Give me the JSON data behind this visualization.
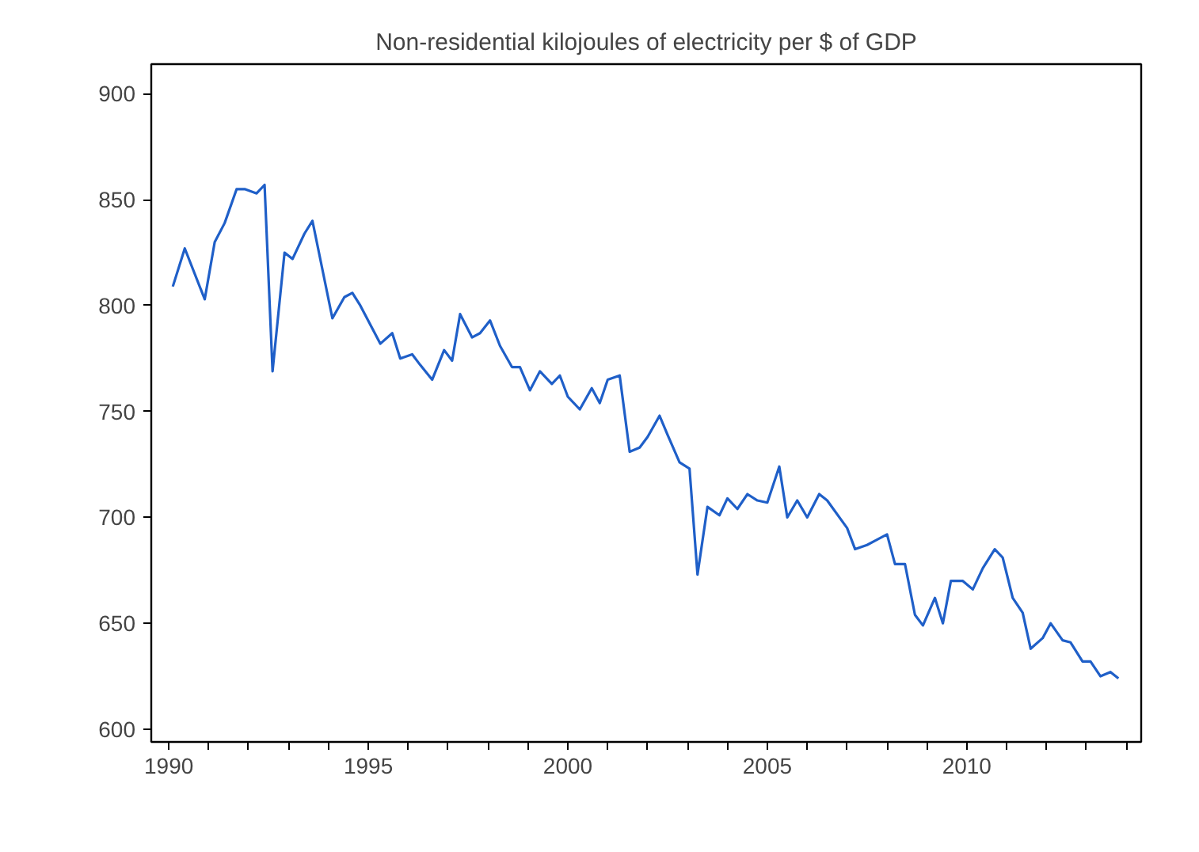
{
  "chart_data": {
    "type": "line",
    "title": "Non-residential kilojoules of electricity per $ of GDP",
    "xlim": [
      1989.56,
      2014.37
    ],
    "ylim": [
      594,
      914
    ],
    "xticks": [
      1990,
      {
        "value": 1991,
        "label": null
      },
      {
        "value": 1992,
        "label": null
      },
      {
        "value": 1993,
        "label": null
      },
      {
        "value": 1994,
        "label": null
      },
      1995,
      {
        "value": 1996,
        "label": null
      },
      {
        "value": 1997,
        "label": null
      },
      {
        "value": 1998,
        "label": null
      },
      {
        "value": 1999,
        "label": null
      },
      2000,
      {
        "value": 2001,
        "label": null
      },
      {
        "value": 2002,
        "label": null
      },
      {
        "value": 2003,
        "label": null
      },
      {
        "value": 2004,
        "label": null
      },
      2005,
      {
        "value": 2006,
        "label": null
      },
      {
        "value": 2007,
        "label": null
      },
      {
        "value": 2008,
        "label": null
      },
      {
        "value": 2009,
        "label": null
      },
      2010,
      {
        "value": 2011,
        "label": null
      },
      {
        "value": 2012,
        "label": null
      },
      {
        "value": 2013,
        "label": null
      },
      {
        "value": 2014,
        "label": null
      }
    ],
    "yticks": [
      600,
      650,
      700,
      750,
      800,
      850,
      900
    ],
    "grid": false,
    "marker": "none",
    "line_style": "solid",
    "series": [
      {
        "color": "#1f5fc8",
        "x": [
          1990.1,
          1990.4,
          1990.9,
          1991.15,
          1991.4,
          1991.7,
          1991.9,
          1992.2,
          1992.4,
          1992.6,
          1992.9,
          1993.1,
          1993.4,
          1993.6,
          1994.1,
          1994.4,
          1994.6,
          1994.8,
          1995.3,
          1995.6,
          1995.8,
          1996.1,
          1996.3,
          1996.6,
          1996.9,
          1997.1,
          1997.3,
          1997.6,
          1997.8,
          1998.05,
          1998.3,
          1998.6,
          1998.8,
          1999.05,
          1999.3,
          1999.6,
          1999.8,
          2000.0,
          2000.3,
          2000.6,
          2000.8,
          2001.0,
          2001.3,
          2001.55,
          2001.8,
          2002.0,
          2002.3,
          2002.5,
          2002.8,
          2003.05,
          2003.25,
          2003.5,
          2003.8,
          2004.0,
          2004.25,
          2004.5,
          2004.75,
          2005.0,
          2005.3,
          2005.5,
          2005.75,
          2006.0,
          2006.3,
          2006.5,
          2007.0,
          2007.2,
          2007.5,
          2007.7,
          2008.0,
          2008.2,
          2008.45,
          2008.7,
          2008.9,
          2009.2,
          2009.4,
          2009.6,
          2009.9,
          2010.15,
          2010.4,
          2010.7,
          2010.9,
          2011.15,
          2011.4,
          2011.6,
          2011.9,
          2012.1,
          2012.4,
          2012.6,
          2012.9,
          2013.1,
          2013.35,
          2013.6,
          2013.8
        ],
        "values": [
          809,
          827,
          803,
          830,
          839,
          855,
          855,
          853,
          857,
          769,
          825,
          822,
          834,
          840,
          794,
          804,
          806,
          800,
          782,
          787,
          775,
          777,
          772,
          765,
          779,
          774,
          796,
          785,
          787,
          793,
          781,
          771,
          771,
          760,
          769,
          763,
          767,
          757,
          751,
          761,
          754,
          765,
          767,
          731,
          733,
          738,
          748,
          739,
          726,
          723,
          673,
          705,
          701,
          709,
          704,
          711,
          708,
          707,
          724,
          700,
          708,
          700,
          711,
          708,
          695,
          685,
          687,
          689,
          692,
          678,
          678,
          654,
          649,
          662,
          650,
          670,
          670,
          666,
          676,
          685,
          681,
          662,
          655,
          638,
          643,
          650,
          642,
          641,
          632,
          632,
          625,
          627,
          624
        ]
      }
    ]
  }
}
